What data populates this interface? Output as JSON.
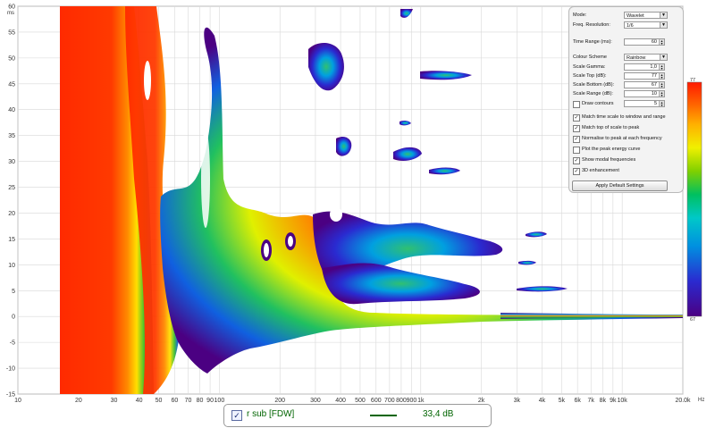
{
  "window": {
    "width": 800,
    "height": 479
  },
  "plot": {
    "y_unit": "ms",
    "x_unit": "Hz",
    "y_ticks": [
      "60",
      "55",
      "50",
      "45",
      "40",
      "35",
      "30",
      "25",
      "20",
      "15",
      "10",
      "5",
      "0",
      "-5",
      "-10",
      "-15"
    ],
    "x_ticks": [
      "10",
      "20",
      "30",
      "40",
      "50",
      "60",
      "70",
      "80",
      "90",
      "100",
      "200",
      "300",
      "400",
      "500",
      "600",
      "700",
      "800",
      "900",
      "1k",
      "2k",
      "3k",
      "4k",
      "5k",
      "6k",
      "7k",
      "8k",
      "9k",
      "10k",
      "20.0k"
    ],
    "colormap": [
      "#4b0082",
      "#2a2ad0",
      "#0090e0",
      "#00c8c8",
      "#00c060",
      "#80d000",
      "#f0f000",
      "#ffb000",
      "#ff6000",
      "#ff1a00"
    ]
  },
  "colorbar": {
    "top_label": "77",
    "bottom_label": "67"
  },
  "controls": {
    "mode": {
      "label": "Mode:",
      "value": "Wavelet"
    },
    "freq_resolution": {
      "label": "Freq. Resolution:",
      "value": "1/6"
    },
    "time_range": {
      "label": "Time Range (ms):",
      "value": "60"
    },
    "colour_scheme": {
      "label": "Colour Scheme",
      "value": "Rainbow"
    },
    "scale_gamma": {
      "label": "Scale Gamma:",
      "value": "1,0"
    },
    "scale_top": {
      "label": "Scale Top (dB):",
      "value": "77"
    },
    "scale_bottom": {
      "label": "Scale Bottom (dB):",
      "value": "67"
    },
    "scale_range": {
      "label": "Scale Range (dB):",
      "value": "10"
    },
    "draw_contours": {
      "label": "Draw contours",
      "value": "5",
      "checked": false
    },
    "options": [
      {
        "label": "Match time scale to window and range",
        "checked": true
      },
      {
        "label": "Match top of scale to peak",
        "checked": true
      },
      {
        "label": "Normalise to peak at each frequency",
        "checked": true
      },
      {
        "label": "Plot the peak energy curve",
        "checked": false
      },
      {
        "label": "Show modal frequencies",
        "checked": true
      },
      {
        "label": "3D enhancement",
        "checked": true
      }
    ],
    "apply_label": "Apply Default Settings"
  },
  "legend": {
    "checked": true,
    "check_mark": "✓",
    "name": "r sub [FDW]",
    "value": "33,4 dB",
    "color": "#006400"
  }
}
